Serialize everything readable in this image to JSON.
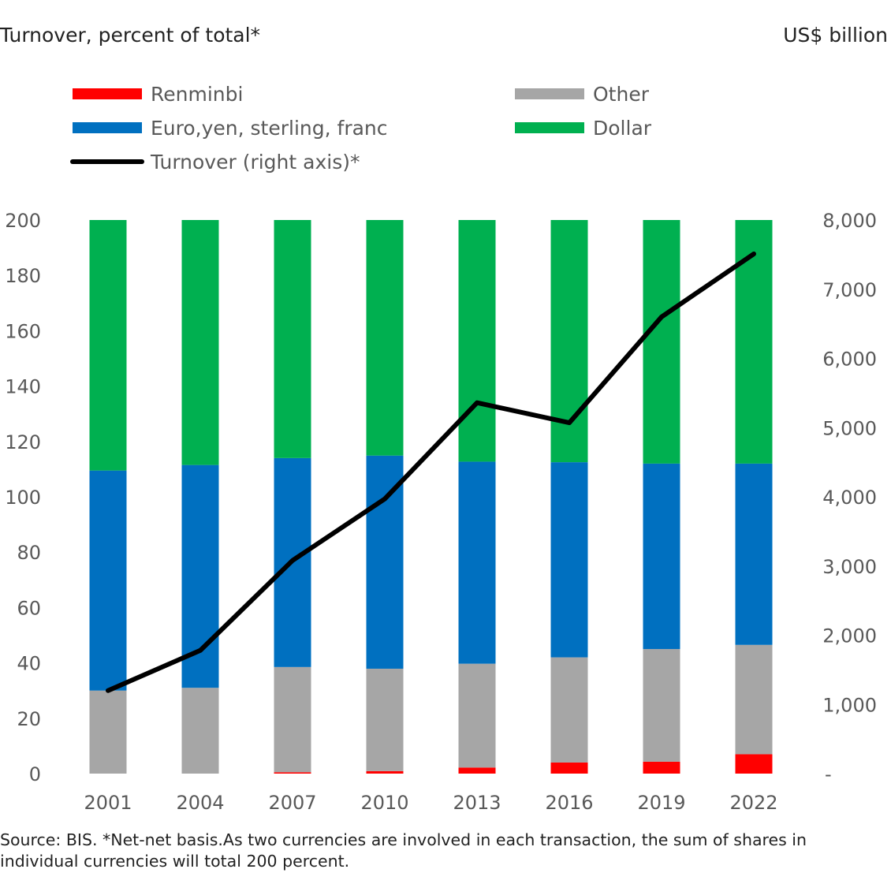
{
  "left_axis_title": "Turnover, percent of total*",
  "right_axis_title": "US$ billion",
  "source_note": "Source: BIS. *Net-net basis.As two currencies are involved in each transaction, the sum of shares in individual currencies will total 200 percent.",
  "colors": {
    "renminbi": "#ff0000",
    "other": "#a6a6a6",
    "euro_yen_sterling_franc": "#0070c0",
    "dollar": "#00b050",
    "turnover": "#000000",
    "axis_text": "#595959"
  },
  "chart_data": {
    "type": "bar",
    "stacked": true,
    "categories": [
      "2001",
      "2004",
      "2007",
      "2010",
      "2013",
      "2016",
      "2019",
      "2022"
    ],
    "series": [
      {
        "name": "Renminbi",
        "color": "#ff0000",
        "values": [
          0,
          0,
          0.5,
          0.9,
          2.2,
          4.0,
          4.3,
          7.0
        ]
      },
      {
        "name": "Other",
        "color": "#a6a6a6",
        "values": [
          30,
          31,
          38,
          37,
          37.5,
          38,
          40.7,
          39.5
        ]
      },
      {
        "name": "Euro,yen, sterling, franc",
        "color": "#0070c0",
        "values": [
          79.5,
          80.5,
          75.5,
          77,
          73,
          70.5,
          67,
          65.5
        ]
      },
      {
        "name": "Dollar",
        "color": "#00b050",
        "values": [
          90.5,
          88.5,
          86,
          85.1,
          87.3,
          87.5,
          88,
          88
        ]
      }
    ],
    "line_series": {
      "name": "Turnover (right axis)*",
      "axis": "right",
      "color": "#000000",
      "values": [
        1200,
        1780,
        3080,
        3970,
        5360,
        5070,
        6600,
        7510
      ]
    },
    "legend": {
      "placement": "top",
      "entries": [
        {
          "label": "Renminbi",
          "key": "renminbi",
          "kind": "bar"
        },
        {
          "label": "Other",
          "key": "other",
          "kind": "bar"
        },
        {
          "label": "Euro,yen, sterling, franc",
          "key": "euro_yen_sterling_franc",
          "kind": "bar"
        },
        {
          "label": "Dollar",
          "key": "dollar",
          "kind": "bar"
        },
        {
          "label": "Turnover (right axis)*",
          "key": "turnover",
          "kind": "line"
        }
      ]
    },
    "left_axis": {
      "min": 0,
      "max": 200,
      "ticks": [
        "0",
        "20",
        "40",
        "60",
        "80",
        "100",
        "120",
        "140",
        "160",
        "180",
        "200"
      ]
    },
    "right_axis": {
      "min": 0,
      "max": 8000,
      "ticks": [
        "-",
        "1,000",
        "2,000",
        "3,000",
        "4,000",
        "5,000",
        "6,000",
        "7,000",
        "8,000"
      ]
    },
    "grid": false
  }
}
